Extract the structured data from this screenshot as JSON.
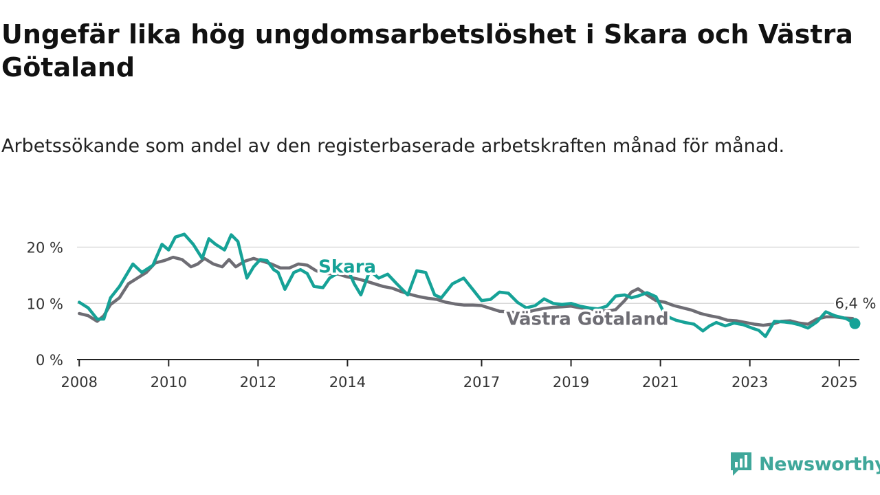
{
  "title": "Ungefär lika hög ungdomsarbetslöshet i Skara och Västra Götaland",
  "subtitle": "Arbetssökande som andel av den registerbaserade arbetskraften månad för månad.",
  "logo": {
    "text": "Newsworthy",
    "icon": "newsworthy-logo-icon",
    "color": "#3fa79a"
  },
  "chart_data": {
    "type": "line",
    "x_unit": "year",
    "xlim": [
      2007.95,
      2025.45
    ],
    "ylim": [
      0,
      23
    ],
    "y_ticks": [
      0,
      10,
      20
    ],
    "y_tick_labels": [
      "0 %",
      "10 %",
      "20 %"
    ],
    "x_ticks": [
      2008,
      2010,
      2012,
      2014,
      2017,
      2019,
      2021,
      2023,
      2025
    ],
    "x_tick_labels": [
      "2008",
      "2010",
      "2012",
      "2014",
      "2017",
      "2019",
      "2021",
      "2023",
      "2025"
    ],
    "grid": true,
    "last_value_label": "6,4 %",
    "series": [
      {
        "name": "Skara",
        "color": "#16a297",
        "x": [
          2008.0,
          2008.2,
          2008.4,
          2008.55,
          2008.7,
          2008.9,
          2009.2,
          2009.4,
          2009.65,
          2009.85,
          2010.0,
          2010.15,
          2010.35,
          2010.55,
          2010.75,
          2010.9,
          2011.05,
          2011.25,
          2011.4,
          2011.55,
          2011.75,
          2011.9,
          2012.05,
          2012.2,
          2012.35,
          2012.45,
          2012.6,
          2012.8,
          2012.95,
          2013.1,
          2013.25,
          2013.45,
          2013.6,
          2013.85,
          2014.0,
          2014.15,
          2014.3,
          2014.5,
          2014.7,
          2014.9,
          2015.1,
          2015.35,
          2015.55,
          2015.75,
          2015.95,
          2016.1,
          2016.35,
          2016.6,
          2016.8,
          2017.0,
          2017.2,
          2017.4,
          2017.6,
          2017.8,
          2018.0,
          2018.2,
          2018.4,
          2018.6,
          2018.8,
          2019.0,
          2019.2,
          2019.4,
          2019.6,
          2019.8,
          2020.0,
          2020.2,
          2020.35,
          2020.5,
          2020.7,
          2020.9,
          2021.05,
          2021.2,
          2021.35,
          2021.55,
          2021.75,
          2021.95,
          2022.1,
          2022.25,
          2022.45,
          2022.65,
          2022.85,
          2023.05,
          2023.2,
          2023.35,
          2023.55,
          2023.75,
          2023.95,
          2024.1,
          2024.3,
          2024.5,
          2024.7,
          2024.9,
          2025.15,
          2025.35
        ],
        "y": [
          10.2,
          9.2,
          7.2,
          7.2,
          11.0,
          13.0,
          17.0,
          15.5,
          16.8,
          20.5,
          19.5,
          21.8,
          22.3,
          20.5,
          18.0,
          21.5,
          20.5,
          19.5,
          22.2,
          21.0,
          14.5,
          16.5,
          17.8,
          17.6,
          16.0,
          15.5,
          12.5,
          15.5,
          16.0,
          15.3,
          13.0,
          12.8,
          14.5,
          15.7,
          16.2,
          13.5,
          11.5,
          15.8,
          14.5,
          15.2,
          13.5,
          11.5,
          15.8,
          15.5,
          11.5,
          11.0,
          13.5,
          14.5,
          12.5,
          10.5,
          10.7,
          12.0,
          11.8,
          10.2,
          9.2,
          9.6,
          10.8,
          10.0,
          9.8,
          10.0,
          9.5,
          9.2,
          9.0,
          9.5,
          11.3,
          11.5,
          11.0,
          11.3,
          11.9,
          11.2,
          8.8,
          7.5,
          7.0,
          6.6,
          6.3,
          5.1,
          6.0,
          6.6,
          6.0,
          6.5,
          6.2,
          5.6,
          5.2,
          4.1,
          6.8,
          6.7,
          6.5,
          6.2,
          5.6,
          6.7,
          8.5,
          7.8,
          7.3,
          6.4
        ]
      },
      {
        "name": "Västra Götaland",
        "color": "#6e6d74",
        "x": [
          2008.0,
          2008.2,
          2008.4,
          2008.55,
          2008.7,
          2008.9,
          2009.1,
          2009.3,
          2009.5,
          2009.7,
          2009.9,
          2010.1,
          2010.3,
          2010.5,
          2010.65,
          2010.8,
          2011.0,
          2011.2,
          2011.35,
          2011.5,
          2011.7,
          2011.9,
          2012.1,
          2012.3,
          2012.5,
          2012.7,
          2012.9,
          2013.1,
          2013.3,
          2013.55,
          2013.8,
          2014.0,
          2014.2,
          2014.4,
          2014.6,
          2014.8,
          2015.0,
          2015.2,
          2015.4,
          2015.6,
          2015.8,
          2016.0,
          2016.2,
          2016.4,
          2016.6,
          2016.8,
          2017.0,
          2017.2,
          2017.4,
          2017.6,
          2017.8,
          2018.0,
          2018.2,
          2018.4,
          2018.6,
          2018.8,
          2019.0,
          2019.2,
          2019.4,
          2019.6,
          2019.8,
          2020.0,
          2020.2,
          2020.35,
          2020.5,
          2020.7,
          2020.9,
          2021.1,
          2021.3,
          2021.5,
          2021.7,
          2021.9,
          2022.1,
          2022.3,
          2022.5,
          2022.7,
          2022.9,
          2023.1,
          2023.3,
          2023.5,
          2023.7,
          2023.9,
          2024.1,
          2024.3,
          2024.5,
          2024.7,
          2024.9,
          2025.1,
          2025.3
        ],
        "y": [
          8.2,
          7.8,
          6.8,
          7.8,
          9.8,
          11.0,
          13.5,
          14.5,
          15.5,
          17.2,
          17.6,
          18.2,
          17.8,
          16.5,
          17.0,
          18.0,
          17.0,
          16.5,
          17.8,
          16.5,
          17.5,
          18.0,
          17.5,
          17.0,
          16.3,
          16.3,
          17.0,
          16.8,
          15.8,
          15.3,
          15.2,
          14.7,
          14.4,
          14.0,
          13.5,
          13.0,
          12.7,
          12.1,
          11.6,
          11.2,
          10.9,
          10.7,
          10.2,
          9.9,
          9.7,
          9.7,
          9.6,
          9.1,
          8.6,
          8.5,
          8.3,
          8.4,
          8.8,
          9.1,
          9.3,
          9.4,
          9.5,
          9.2,
          9.0,
          8.8,
          8.6,
          8.9,
          10.5,
          12.0,
          12.6,
          11.5,
          10.5,
          10.2,
          9.6,
          9.2,
          8.8,
          8.2,
          7.8,
          7.5,
          7.0,
          6.9,
          6.6,
          6.3,
          6.1,
          6.3,
          6.8,
          6.9,
          6.5,
          6.3,
          7.2,
          7.6,
          7.6,
          7.4,
          7.3
        ]
      }
    ]
  }
}
